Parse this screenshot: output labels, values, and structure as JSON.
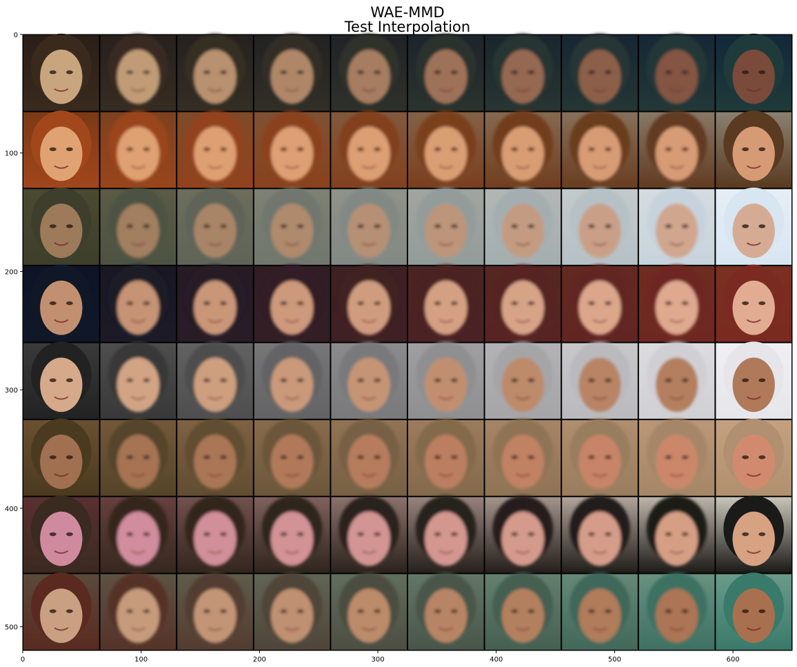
{
  "figure": {
    "title_lines": [
      "WAE-MMD",
      "Test Interpolation"
    ]
  },
  "image_grid": {
    "rows": 8,
    "columns": 10,
    "description": "grid of face images; each row interpolates between the leftmost and rightmost face"
  },
  "chart_data": {
    "type": "image",
    "x_ticks": [
      "0",
      "100",
      "200",
      "300",
      "400",
      "500",
      "600"
    ],
    "y_ticks": [
      "0",
      "100",
      "200",
      "300",
      "400",
      "500"
    ],
    "x_tick_values": [
      0,
      100,
      200,
      300,
      400,
      500,
      600
    ],
    "y_tick_values": [
      0,
      100,
      200,
      300,
      400,
      500
    ],
    "xlim": [
      0,
      650
    ],
    "ylim": [
      520,
      0
    ]
  },
  "rows": [
    {
      "left": "#3a2a1e",
      "right": "#1f3a3a",
      "start_tone": "#c9a57e",
      "end_tone": "#7a4a3a",
      "bg_a": "#2a1f18",
      "bg_b": "#13283a"
    },
    {
      "left": "#a2461c",
      "right": "#5a3a20",
      "start_tone": "#e0a272",
      "end_tone": "#d69a74",
      "bg_a": "#7a3a14",
      "bg_b": "#8a8070"
    },
    {
      "left": "#3d3f2c",
      "right": "#d8e6f2",
      "start_tone": "#9c7a5a",
      "end_tone": "#d6ab94",
      "bg_a": "#4a4a30",
      "bg_b": "#e6eef6"
    },
    {
      "left": "#101828",
      "right": "#7a2a20",
      "start_tone": "#c29070",
      "end_tone": "#e2ac92",
      "bg_a": "#0e1426",
      "bg_b": "#7a3020"
    },
    {
      "left": "#222",
      "right": "#e6e6ea",
      "start_tone": "#d6a98a",
      "end_tone": "#b07a5a",
      "bg_a": "#3a3a3a",
      "bg_b": "#f0f0f4"
    },
    {
      "left": "#4a3a20",
      "right": "#b09070",
      "start_tone": "#a07050",
      "end_tone": "#d28a6e",
      "bg_a": "#6a5030",
      "bg_b": "#c4a080"
    },
    {
      "left": "#3a2a20",
      "right": "#1a1a18",
      "start_tone": "#d08aa0",
      "end_tone": "#d6a282",
      "bg_a": "#5a3030",
      "bg_b": "#c8c4b8"
    },
    {
      "left": "#5a2a20",
      "right": "#3a7a6a",
      "start_tone": "#caa082",
      "end_tone": "#a8704e",
      "bg_a": "#5a4a3a",
      "bg_b": "#6a9a8a"
    }
  ]
}
